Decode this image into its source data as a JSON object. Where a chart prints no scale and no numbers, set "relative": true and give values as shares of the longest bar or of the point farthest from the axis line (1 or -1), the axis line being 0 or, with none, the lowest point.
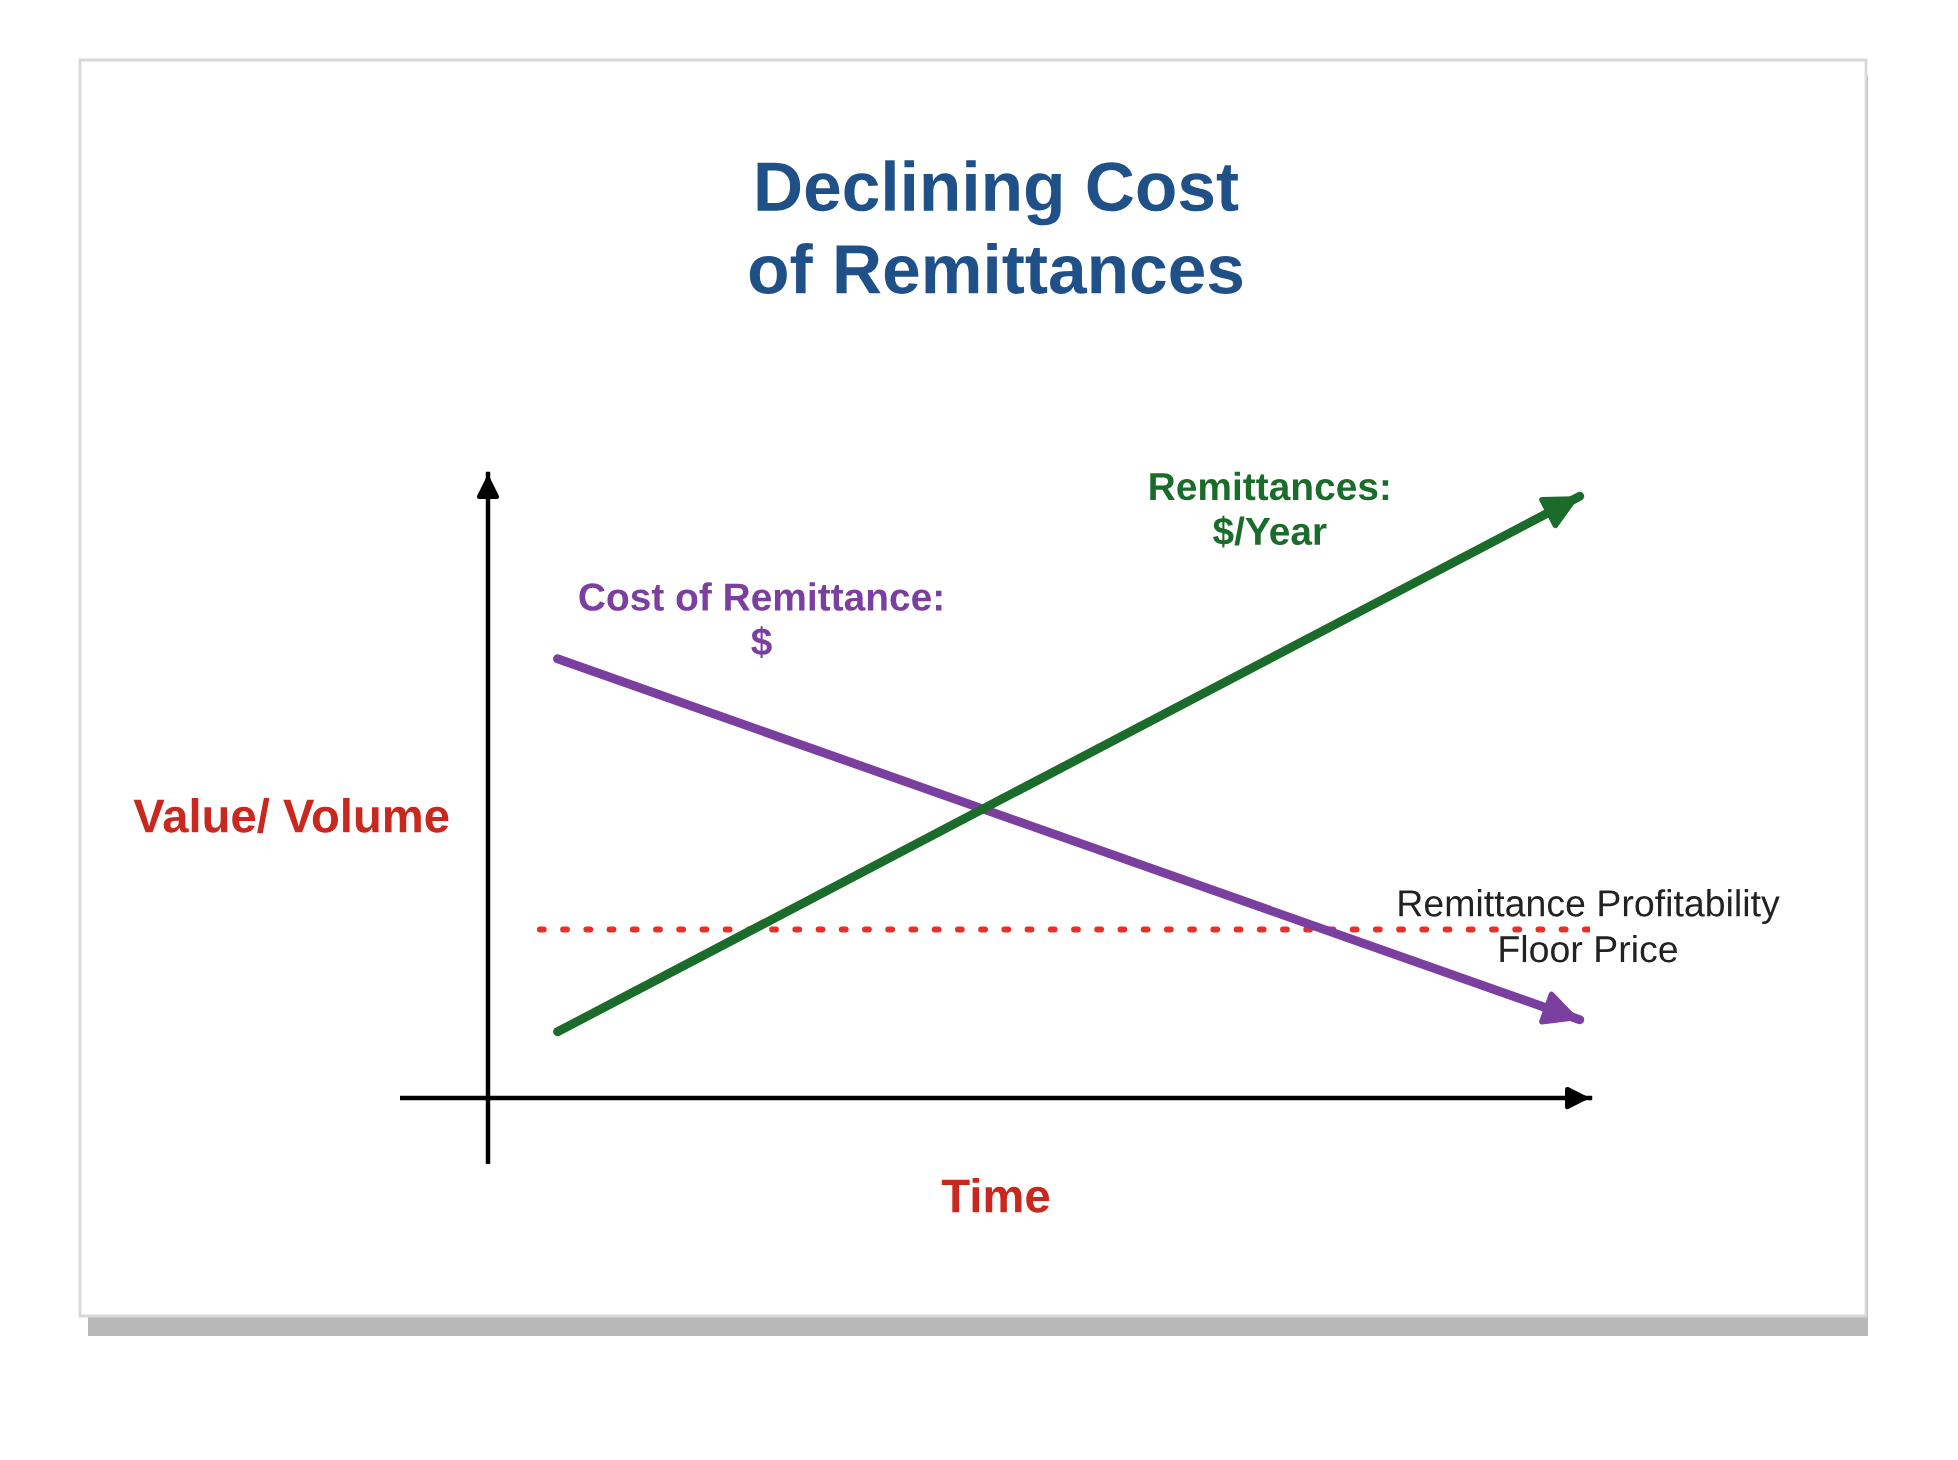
{
  "chart_data": {
    "type": "line",
    "title": "Declining Cost\nof Remittances",
    "xlabel": "Time",
    "ylabel": "Value/ Volume",
    "categories": [
      null,
      null
    ],
    "relative": true,
    "series": [
      {
        "name": "Cost of Remittance:\n$",
        "color": "#7b3fa0",
        "values": [
          0.73,
          0.13
        ]
      },
      {
        "name": "Remittances:\n$/Year",
        "color": "#1b6b2b",
        "values": [
          0.11,
          1
        ]
      }
    ],
    "ref_lines": [
      {
        "axis": "y",
        "value": 0.28,
        "label": "Remittance Profitability\nFloor Price",
        "color": "#e8302a",
        "line_style": "dotted"
      }
    ],
    "legend": false,
    "marker": "none",
    "line_style": "solid",
    "tick_labels": false
  }
}
